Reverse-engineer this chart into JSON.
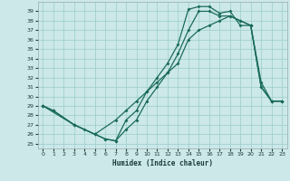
{
  "xlabel": "Humidex (Indice chaleur)",
  "bg_color": "#cce8e8",
  "grid_color": "#99cccc",
  "line_color": "#1a6b5a",
  "xlim": [
    -0.5,
    23.5
  ],
  "ylim": [
    24.5,
    40.0
  ],
  "xticks": [
    0,
    1,
    2,
    3,
    4,
    5,
    6,
    7,
    8,
    9,
    10,
    11,
    12,
    13,
    14,
    15,
    16,
    17,
    18,
    19,
    20,
    21,
    22,
    23
  ],
  "yticks": [
    25,
    26,
    27,
    28,
    29,
    30,
    31,
    32,
    33,
    34,
    35,
    36,
    37,
    38,
    39
  ],
  "line1_x": [
    0,
    1,
    3,
    4,
    5,
    6,
    7,
    8,
    9,
    10,
    11,
    12,
    13,
    14,
    15,
    16,
    17,
    18,
    19,
    20,
    21,
    22,
    23
  ],
  "line1_y": [
    29.0,
    28.5,
    27.0,
    26.5,
    26.0,
    25.5,
    25.3,
    27.5,
    28.5,
    30.5,
    32.0,
    33.5,
    35.5,
    39.2,
    39.5,
    39.5,
    38.8,
    39.0,
    37.5,
    37.5,
    31.0,
    29.5,
    29.5
  ],
  "line2_x": [
    0,
    1,
    3,
    5,
    6,
    7,
    8,
    9,
    10,
    11,
    12,
    13,
    14,
    15,
    16,
    17,
    18,
    19,
    20,
    21,
    22,
    23
  ],
  "line2_y": [
    29.0,
    28.5,
    27.0,
    26.0,
    25.5,
    25.3,
    26.5,
    27.5,
    29.5,
    31.0,
    32.5,
    34.5,
    37.0,
    39.0,
    39.0,
    38.5,
    38.5,
    38.0,
    37.5,
    31.5,
    29.5,
    29.5
  ],
  "line3_x": [
    0,
    3,
    5,
    7,
    8,
    9,
    10,
    11,
    12,
    13,
    14,
    15,
    16,
    17,
    18,
    19,
    20,
    21,
    22,
    23
  ],
  "line3_y": [
    29.0,
    27.0,
    26.0,
    27.5,
    28.5,
    29.5,
    30.5,
    31.5,
    32.5,
    33.5,
    36.0,
    37.0,
    37.5,
    38.0,
    38.5,
    38.0,
    37.5,
    31.0,
    29.5,
    29.5
  ]
}
